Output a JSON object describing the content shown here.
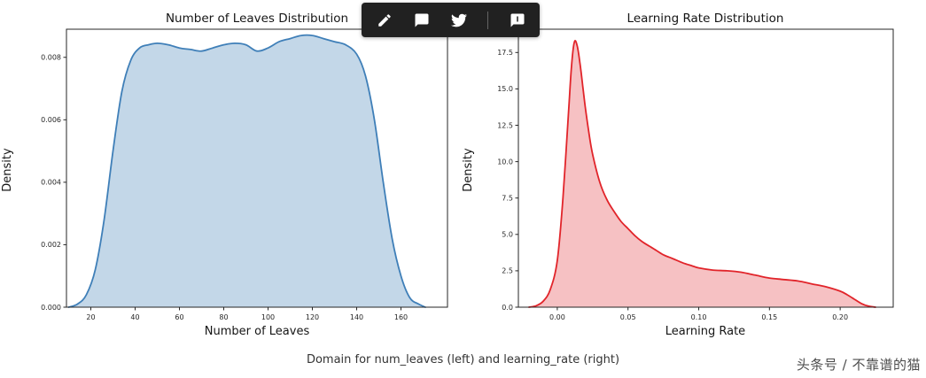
{
  "toolbar": {
    "background": "#212121",
    "icon_color": "#ffffff",
    "icons": [
      {
        "name": "edit-icon"
      },
      {
        "name": "comment-icon"
      },
      {
        "name": "twitter-icon"
      },
      {
        "name": "chat-icon"
      }
    ]
  },
  "caption": "Domain for num_leaves (left) and learning_rate (right)",
  "watermark": "头条号 / 不靠谱的猫",
  "chart_data": [
    {
      "type": "area",
      "title": "Number of Leaves Distribution",
      "xlabel": "Number of Leaves",
      "ylabel": "Density",
      "line_color": "#3f7fb8",
      "fill_color": "#b9d0e4",
      "fill_opacity": 0.85,
      "xlim": [
        9,
        181
      ],
      "ylim": [
        0,
        0.0089
      ],
      "xticks": [
        20,
        40,
        60,
        80,
        100,
        120,
        140,
        160
      ],
      "xtick_labels": [
        "20",
        "40",
        "60",
        "80",
        "100",
        "120",
        "140",
        "160"
      ],
      "yticks": [
        0,
        0.002,
        0.004,
        0.006,
        0.008
      ],
      "ytick_labels": [
        "0.000",
        "0.002",
        "0.004",
        "0.006",
        "0.008"
      ],
      "grid": false,
      "legend": null,
      "x": [
        10,
        14,
        18,
        22,
        26,
        30,
        34,
        38,
        42,
        46,
        50,
        55,
        60,
        65,
        70,
        75,
        80,
        85,
        90,
        95,
        100,
        105,
        110,
        115,
        120,
        125,
        130,
        135,
        140,
        144,
        148,
        152,
        156,
        160,
        164,
        168,
        171
      ],
      "y": [
        0,
        0.0001,
        0.0004,
        0.0012,
        0.0028,
        0.005,
        0.0069,
        0.0079,
        0.0083,
        0.0084,
        0.00845,
        0.0084,
        0.0083,
        0.00825,
        0.0082,
        0.0083,
        0.0084,
        0.00845,
        0.0084,
        0.0082,
        0.0083,
        0.0085,
        0.0086,
        0.0087,
        0.0087,
        0.0086,
        0.0085,
        0.0084,
        0.0081,
        0.0074,
        0.006,
        0.004,
        0.0022,
        0.001,
        0.0003,
        0.0001,
        0
      ]
    },
    {
      "type": "area",
      "title": "Learning Rate Distribution",
      "xlabel": "Learning Rate",
      "ylabel": "Density",
      "line_color": "#e1242a",
      "fill_color": "#f4b6b8",
      "fill_opacity": 0.85,
      "xlim": [
        -0.0275,
        0.2375
      ],
      "ylim": [
        0,
        19.1
      ],
      "xticks": [
        0.0,
        0.05,
        0.1,
        0.15,
        0.2
      ],
      "xtick_labels": [
        "0.00",
        "0.05",
        "0.10",
        "0.15",
        "0.20"
      ],
      "yticks": [
        0,
        2.5,
        5,
        7.5,
        10,
        12.5,
        15,
        17.5
      ],
      "ytick_labels": [
        "0.0",
        "2.5",
        "5.0",
        "7.5",
        "10.0",
        "12.5",
        "15.0",
        "17.5"
      ],
      "grid": false,
      "legend": null,
      "x": [
        -0.02,
        -0.015,
        -0.01,
        -0.005,
        0,
        0.004,
        0.008,
        0.01,
        0.012,
        0.014,
        0.016,
        0.018,
        0.02,
        0.0225,
        0.025,
        0.03,
        0.035,
        0.04,
        0.045,
        0.05,
        0.055,
        0.06,
        0.065,
        0.07,
        0.075,
        0.08,
        0.085,
        0.09,
        0.095,
        0.1,
        0.11,
        0.12,
        0.13,
        0.14,
        0.15,
        0.16,
        0.17,
        0.18,
        0.19,
        0.2,
        0.205,
        0.21,
        0.215,
        0.22,
        0.225
      ],
      "y": [
        0,
        0.1,
        0.4,
        1.2,
        3.2,
        7.5,
        13.5,
        16.5,
        18.2,
        18,
        16.8,
        15.2,
        13.6,
        11.9,
        10.5,
        8.6,
        7.4,
        6.6,
        5.9,
        5.4,
        4.9,
        4.5,
        4.2,
        3.9,
        3.6,
        3.4,
        3.2,
        3.0,
        2.85,
        2.7,
        2.55,
        2.5,
        2.4,
        2.2,
        2.0,
        1.9,
        1.8,
        1.6,
        1.4,
        1.1,
        0.85,
        0.55,
        0.25,
        0.07,
        0
      ]
    }
  ]
}
